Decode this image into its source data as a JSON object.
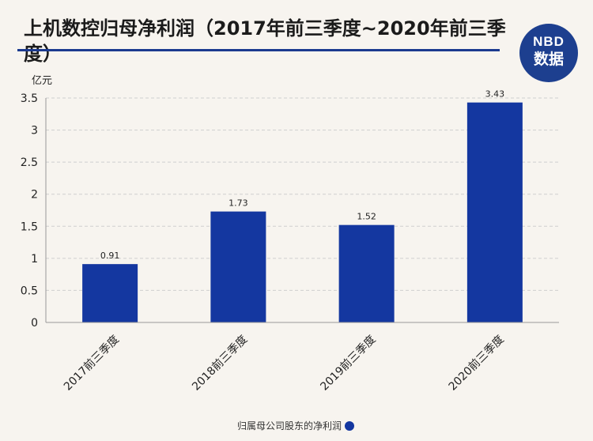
{
  "header": {
    "title": "上机数控归母净利润（2017年前三季度~2020年前三季度）"
  },
  "logo": {
    "line1": "NBD",
    "line2": "数据"
  },
  "chart_data": {
    "type": "bar",
    "title": "上机数控归母净利润（2017年前三季度~2020年前三季度）",
    "ylabel": "亿元",
    "xlabel": "",
    "categories": [
      "2017前三季度",
      "2018前三季度",
      "2019前三季度",
      "2020前三季度"
    ],
    "series": [
      {
        "name": "归属母公司股东的净利润",
        "values": [
          0.91,
          1.73,
          1.52,
          3.43
        ],
        "color": "#1437a0"
      }
    ],
    "ylim": [
      0,
      3.5
    ],
    "yticks": [
      "0",
      "0.5",
      "1",
      "1.5",
      "2",
      "2.5",
      "3",
      "3.5"
    ],
    "grid": true,
    "legend_position": "bottom"
  }
}
